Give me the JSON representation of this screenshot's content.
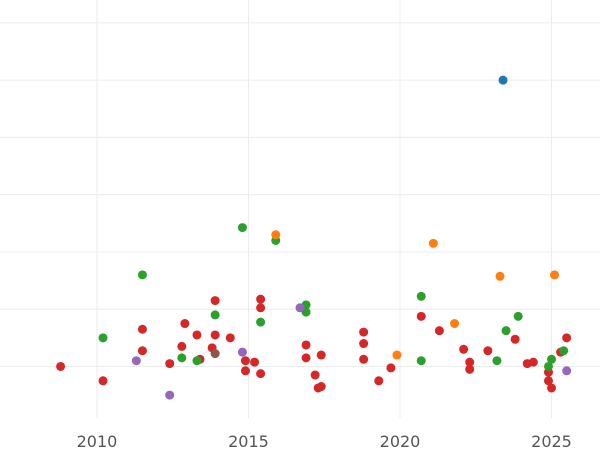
{
  "chart_data": {
    "type": "scatter",
    "title": "",
    "xlabel": "",
    "ylabel": "",
    "xlim": [
      2006.8,
      2026.6
    ],
    "ylim": [
      -1.8,
      12.8
    ],
    "grid": true,
    "x_ticks": [
      {
        "value": 2010,
        "label": "2010"
      },
      {
        "value": 2015,
        "label": "2015"
      },
      {
        "value": 2020,
        "label": "2020"
      },
      {
        "value": 2025,
        "label": "2025"
      }
    ],
    "y_gridlines": [
      0,
      2,
      4,
      6,
      8,
      10,
      12
    ],
    "colors": {
      "red": "#d62728",
      "green": "#2ca02c",
      "purple": "#9467bd",
      "orange": "#ff7f0e",
      "brown": "#8c564b",
      "blue": "#1f77b4",
      "grid": "#ececec",
      "tick_text": "#555555"
    },
    "series": [
      {
        "color_key": "red",
        "points": [
          [
            2008.8,
            0.0
          ],
          [
            2010.2,
            -0.5
          ],
          [
            2011.5,
            1.3
          ],
          [
            2011.5,
            0.55
          ],
          [
            2012.4,
            0.1
          ],
          [
            2012.8,
            0.7
          ],
          [
            2012.9,
            1.5
          ],
          [
            2013.3,
            1.1
          ],
          [
            2013.4,
            0.25
          ],
          [
            2013.8,
            0.65
          ],
          [
            2013.9,
            1.1
          ],
          [
            2013.9,
            2.3
          ],
          [
            2014.4,
            1.0
          ],
          [
            2014.9,
            0.2
          ],
          [
            2014.9,
            -0.15
          ],
          [
            2015.2,
            0.15
          ],
          [
            2015.4,
            2.35
          ],
          [
            2015.4,
            2.05
          ],
          [
            2015.4,
            -0.25
          ],
          [
            2016.9,
            0.75
          ],
          [
            2016.9,
            0.3
          ],
          [
            2017.2,
            -0.3
          ],
          [
            2017.3,
            -0.75
          ],
          [
            2017.4,
            -0.7
          ],
          [
            2017.4,
            0.4
          ],
          [
            2018.8,
            1.2
          ],
          [
            2018.8,
            0.8
          ],
          [
            2018.8,
            0.25
          ],
          [
            2019.3,
            -0.5
          ],
          [
            2019.7,
            -0.05
          ],
          [
            2020.7,
            1.75
          ],
          [
            2021.3,
            1.25
          ],
          [
            2022.1,
            0.6
          ],
          [
            2022.3,
            0.15
          ],
          [
            2022.3,
            -0.1
          ],
          [
            2022.9,
            0.55
          ],
          [
            2023.8,
            0.95
          ],
          [
            2024.2,
            0.1
          ],
          [
            2024.4,
            0.15
          ],
          [
            2024.9,
            -0.2
          ],
          [
            2024.9,
            -0.5
          ],
          [
            2025.0,
            -0.75
          ],
          [
            2025.3,
            0.5
          ],
          [
            2025.5,
            1.0
          ]
        ]
      },
      {
        "color_key": "green",
        "points": [
          [
            2010.2,
            1.0
          ],
          [
            2011.5,
            3.2
          ],
          [
            2012.8,
            0.3
          ],
          [
            2013.3,
            0.2
          ],
          [
            2013.9,
            1.8
          ],
          [
            2014.8,
            4.85
          ],
          [
            2015.4,
            1.55
          ],
          [
            2015.9,
            4.4
          ],
          [
            2016.9,
            2.15
          ],
          [
            2016.9,
            1.9
          ],
          [
            2020.7,
            2.45
          ],
          [
            2020.7,
            0.2
          ],
          [
            2023.2,
            0.2
          ],
          [
            2023.5,
            1.25
          ],
          [
            2023.9,
            1.75
          ],
          [
            2024.9,
            0.0
          ],
          [
            2025.0,
            0.25
          ],
          [
            2025.4,
            0.55
          ]
        ]
      },
      {
        "color_key": "purple",
        "points": [
          [
            2011.3,
            0.2
          ],
          [
            2012.4,
            -1.0
          ],
          [
            2014.8,
            0.5
          ],
          [
            2016.7,
            2.05
          ],
          [
            2025.5,
            -0.15
          ]
        ]
      },
      {
        "color_key": "orange",
        "points": [
          [
            2015.9,
            4.6
          ],
          [
            2019.9,
            0.4
          ],
          [
            2021.1,
            4.3
          ],
          [
            2021.8,
            1.5
          ],
          [
            2023.3,
            3.15
          ],
          [
            2025.1,
            3.2
          ]
        ]
      },
      {
        "color_key": "brown",
        "points": [
          [
            2013.9,
            0.45
          ]
        ]
      },
      {
        "color_key": "blue",
        "points": [
          [
            2023.4,
            10.0
          ]
        ]
      }
    ]
  }
}
